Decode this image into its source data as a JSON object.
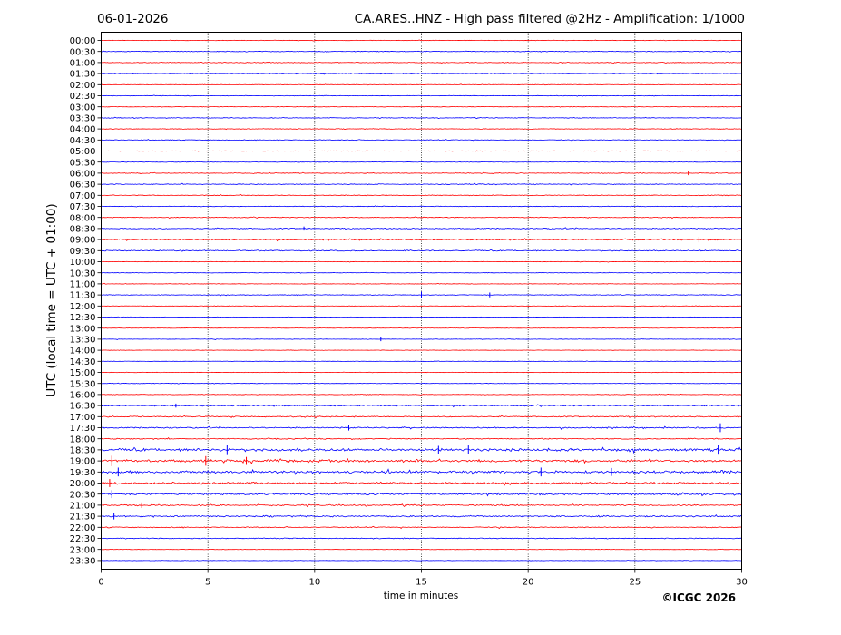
{
  "chart_data": {
    "type": "line",
    "subtype": "helicorder",
    "date": "06-01-2026",
    "title": "CA.ARES..HNZ - High pass filtered @2Hz - Amplification: 1/1000",
    "xlabel": "time in minutes",
    "ylabel": "UTC (local time = UTC + 01:00)",
    "xlim": [
      0,
      30
    ],
    "x_ticks": [
      "0",
      "5",
      "10",
      "15",
      "20",
      "25",
      "30"
    ],
    "vertical_gridlines_at": [
      5,
      10,
      15,
      20,
      25
    ],
    "grid": "vertical dotted",
    "rows": [
      {
        "label": "00:00",
        "color": "red",
        "activity": 0.3
      },
      {
        "label": "00:30",
        "color": "blue",
        "activity": 0.45
      },
      {
        "label": "01:00",
        "color": "red",
        "activity": 0.45
      },
      {
        "label": "01:30",
        "color": "blue",
        "activity": 0.4
      },
      {
        "label": "02:00",
        "color": "red",
        "activity": 0.3
      },
      {
        "label": "02:30",
        "color": "blue",
        "activity": 0.35
      },
      {
        "label": "03:00",
        "color": "red",
        "activity": 0.3
      },
      {
        "label": "03:30",
        "color": "blue",
        "activity": 0.4
      },
      {
        "label": "04:00",
        "color": "red",
        "activity": 0.4
      },
      {
        "label": "04:30",
        "color": "blue",
        "activity": 0.4
      },
      {
        "label": "05:00",
        "color": "red",
        "activity": 0.3
      },
      {
        "label": "05:30",
        "color": "blue",
        "activity": 0.3
      },
      {
        "label": "06:00",
        "color": "red",
        "activity": 0.45
      },
      {
        "label": "06:30",
        "color": "blue",
        "activity": 0.5
      },
      {
        "label": "07:00",
        "color": "red",
        "activity": 0.45
      },
      {
        "label": "07:30",
        "color": "blue",
        "activity": 0.4
      },
      {
        "label": "08:00",
        "color": "red",
        "activity": 0.45
      },
      {
        "label": "08:30",
        "color": "blue",
        "activity": 0.6
      },
      {
        "label": "09:00",
        "color": "red",
        "activity": 0.7
      },
      {
        "label": "09:30",
        "color": "blue",
        "activity": 0.65
      },
      {
        "label": "10:00",
        "color": "red",
        "activity": 0.3
      },
      {
        "label": "10:30",
        "color": "blue",
        "activity": 0.3
      },
      {
        "label": "11:00",
        "color": "red",
        "activity": 0.3
      },
      {
        "label": "11:30",
        "color": "blue",
        "activity": 0.4
      },
      {
        "label": "12:00",
        "color": "red",
        "activity": 0.25
      },
      {
        "label": "12:30",
        "color": "blue",
        "activity": 0.25
      },
      {
        "label": "13:00",
        "color": "red",
        "activity": 0.25
      },
      {
        "label": "13:30",
        "color": "blue",
        "activity": 0.3
      },
      {
        "label": "14:00",
        "color": "red",
        "activity": 0.25
      },
      {
        "label": "14:30",
        "color": "blue",
        "activity": 0.25
      },
      {
        "label": "15:00",
        "color": "red",
        "activity": 0.25
      },
      {
        "label": "15:30",
        "color": "blue",
        "activity": 0.3
      },
      {
        "label": "16:00",
        "color": "red",
        "activity": 0.35
      },
      {
        "label": "16:30",
        "color": "blue",
        "activity": 0.7
      },
      {
        "label": "17:00",
        "color": "red",
        "activity": 0.7
      },
      {
        "label": "17:30",
        "color": "blue",
        "activity": 0.8
      },
      {
        "label": "18:00",
        "color": "red",
        "activity": 0.6
      },
      {
        "label": "18:30",
        "color": "blue",
        "activity": 1.6
      },
      {
        "label": "19:00",
        "color": "red",
        "activity": 1.5
      },
      {
        "label": "19:30",
        "color": "blue",
        "activity": 1.5
      },
      {
        "label": "20:00",
        "color": "red",
        "activity": 1.2
      },
      {
        "label": "20:30",
        "color": "blue",
        "activity": 1.1
      },
      {
        "label": "21:00",
        "color": "red",
        "activity": 0.8
      },
      {
        "label": "21:30",
        "color": "blue",
        "activity": 0.9
      },
      {
        "label": "22:00",
        "color": "red",
        "activity": 0.6
      },
      {
        "label": "22:30",
        "color": "blue",
        "activity": 0.5
      },
      {
        "label": "23:00",
        "color": "red",
        "activity": 0.25
      },
      {
        "label": "23:30",
        "color": "blue",
        "activity": 0.25
      }
    ],
    "spikes": [
      {
        "row": "11:30",
        "minute": 15.0,
        "size": 1.6
      },
      {
        "row": "11:30",
        "minute": 18.2,
        "size": 1.2
      },
      {
        "row": "08:30",
        "minute": 9.5,
        "size": 1.0
      },
      {
        "row": "06:00",
        "minute": 27.5,
        "size": 1.0
      },
      {
        "row": "09:00",
        "minute": 28.0,
        "size": 1.4
      },
      {
        "row": "16:30",
        "minute": 3.5,
        "size": 1.0
      },
      {
        "row": "17:30",
        "minute": 11.6,
        "size": 1.4
      },
      {
        "row": "17:30",
        "minute": 29.0,
        "size": 2.2
      },
      {
        "row": "18:30",
        "minute": 5.9,
        "size": 2.6
      },
      {
        "row": "18:30",
        "minute": 15.8,
        "size": 2.0
      },
      {
        "row": "18:30",
        "minute": 17.2,
        "size": 2.2
      },
      {
        "row": "18:30",
        "minute": 28.9,
        "size": 2.4
      },
      {
        "row": "19:00",
        "minute": 0.5,
        "size": 2.6
      },
      {
        "row": "19:00",
        "minute": 4.9,
        "size": 2.4
      },
      {
        "row": "19:00",
        "minute": 6.8,
        "size": 2.0
      },
      {
        "row": "19:30",
        "minute": 0.8,
        "size": 2.2
      },
      {
        "row": "19:30",
        "minute": 20.6,
        "size": 2.2
      },
      {
        "row": "19:30",
        "minute": 23.9,
        "size": 2.0
      },
      {
        "row": "20:00",
        "minute": 0.4,
        "size": 2.0
      },
      {
        "row": "20:30",
        "minute": 0.5,
        "size": 2.0
      },
      {
        "row": "21:00",
        "minute": 1.9,
        "size": 1.4
      },
      {
        "row": "21:30",
        "minute": 0.6,
        "size": 1.6
      },
      {
        "row": "13:30",
        "minute": 13.1,
        "size": 1.0
      }
    ],
    "colors": {
      "red": "#ff0000",
      "blue": "#0000ff",
      "grid": "#000000"
    }
  },
  "copyright": "©ICGC 2026"
}
